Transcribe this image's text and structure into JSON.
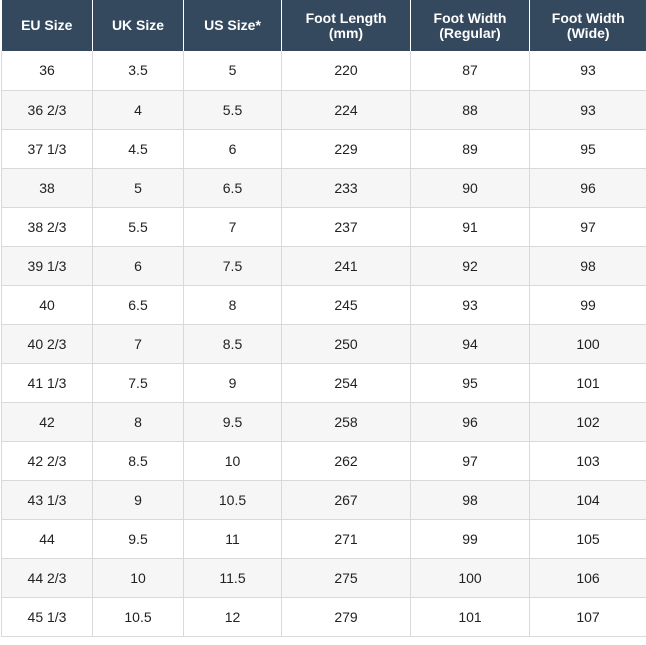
{
  "table": {
    "headers": [
      "EU Size",
      "UK Size",
      "US Size*",
      "Foot Length\n(mm)",
      "Foot Width\n(Regular)",
      "Foot Width\n(Wide)"
    ],
    "rows": [
      [
        "36",
        "3.5",
        "5",
        "220",
        "87",
        "93"
      ],
      [
        "36 2/3",
        "4",
        "5.5",
        "224",
        "88",
        "93"
      ],
      [
        "37 1/3",
        "4.5",
        "6",
        "229",
        "89",
        "95"
      ],
      [
        "38",
        "5",
        "6.5",
        "233",
        "90",
        "96"
      ],
      [
        "38 2/3",
        "5.5",
        "7",
        "237",
        "91",
        "97"
      ],
      [
        "39 1/3",
        "6",
        "7.5",
        "241",
        "92",
        "98"
      ],
      [
        "40",
        "6.5",
        "8",
        "245",
        "93",
        "99"
      ],
      [
        "40 2/3",
        "7",
        "8.5",
        "250",
        "94",
        "100"
      ],
      [
        "41 1/3",
        "7.5",
        "9",
        "254",
        "95",
        "101"
      ],
      [
        "42",
        "8",
        "9.5",
        "258",
        "96",
        "102"
      ],
      [
        "42 2/3",
        "8.5",
        "10",
        "262",
        "97",
        "103"
      ],
      [
        "43 1/3",
        "9",
        "10.5",
        "267",
        "98",
        "104"
      ],
      [
        "44",
        "9.5",
        "11",
        "271",
        "99",
        "105"
      ],
      [
        "44 2/3",
        "10",
        "11.5",
        "275",
        "100",
        "106"
      ],
      [
        "45 1/3",
        "10.5",
        "12",
        "279",
        "101",
        "107"
      ]
    ]
  },
  "colors": {
    "header_bg": "#35495e",
    "header_text": "#ffffff",
    "row_alt_bg": "#f6f6f6",
    "border": "#d9d9d9"
  }
}
